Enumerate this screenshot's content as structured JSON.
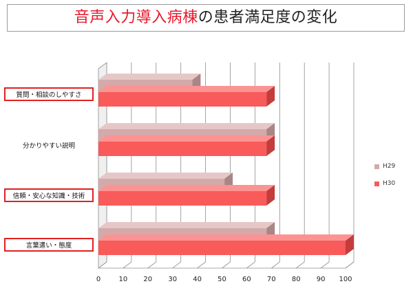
{
  "title": {
    "highlight": "音声入力導入病棟",
    "rest": "の患者満足度の変化"
  },
  "colors": {
    "title_highlight": "#e8192c",
    "h29_face": "#d4a9a9",
    "h29_top": "#e6c7c7",
    "h29_side": "#a98585",
    "h30_face": "#f95a5a",
    "h30_top": "#fc9393",
    "h30_side": "#c43c3c",
    "label_box_border": "#e02020"
  },
  "chart_data": {
    "type": "bar",
    "orientation": "horizontal",
    "style": "3d",
    "categories": [
      "質問・相談のしやすさ",
      "分かりやすい説明",
      "信頼・安心な知識・技術",
      "言葉遣い・態度"
    ],
    "boxed_categories": [
      true,
      false,
      true,
      true
    ],
    "series": [
      {
        "name": "H29",
        "values": [
          38,
          68,
          51,
          68
        ]
      },
      {
        "name": "H30",
        "values": [
          68,
          68,
          68,
          100
        ]
      }
    ],
    "xticks": [
      0,
      10,
      20,
      30,
      40,
      50,
      60,
      70,
      80,
      90,
      100
    ],
    "xlim": [
      0,
      100
    ],
    "grid": true,
    "legend_position": "right"
  }
}
